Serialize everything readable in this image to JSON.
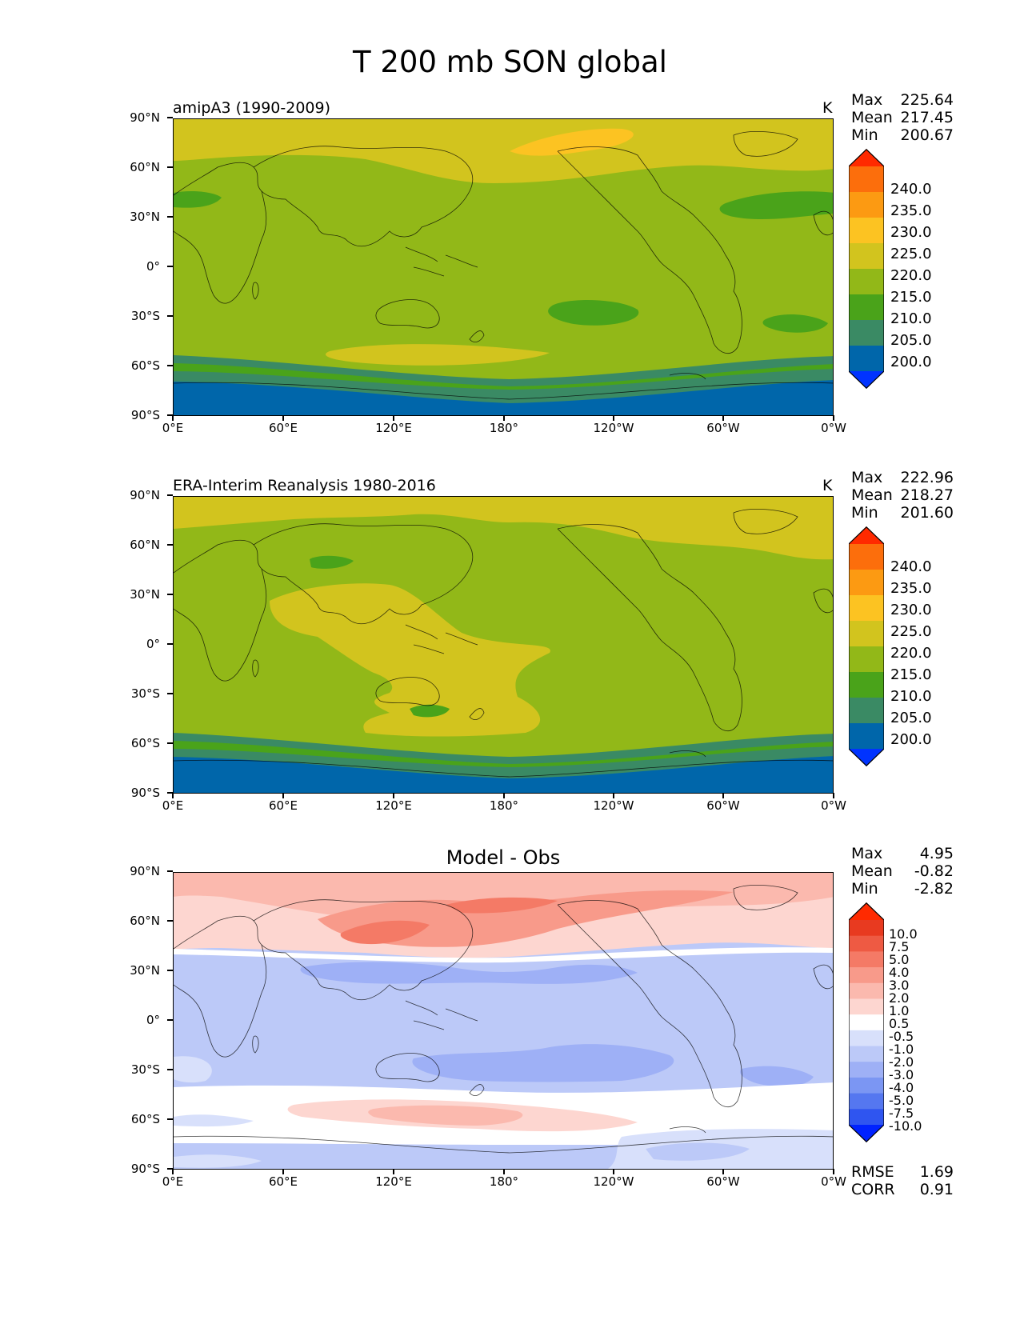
{
  "figure_title": "T 200 mb SON global",
  "axes": {
    "lat_ticks": [
      "90°N",
      "60°N",
      "30°N",
      "0°",
      "30°S",
      "60°S",
      "90°S"
    ],
    "lon_ticks": [
      "0°E",
      "60°E",
      "120°E",
      "180°",
      "120°W",
      "60°W",
      "0°W"
    ]
  },
  "panels": [
    {
      "subtitle": "amipA3 (1990-2009)",
      "units": "K",
      "stats": [
        {
          "label": "Max",
          "value": "225.64"
        },
        {
          "label": "Mean",
          "value": "217.45"
        },
        {
          "label": "Min",
          "value": "200.67"
        }
      ],
      "colorbar_labels": [
        "240.0",
        "235.0",
        "230.0",
        "225.0",
        "220.0",
        "215.0",
        "210.0",
        "205.0",
        "200.0"
      ]
    },
    {
      "subtitle": "ERA-Interim Reanalysis 1980-2016",
      "units": "K",
      "stats": [
        {
          "label": "Max",
          "value": "222.96"
        },
        {
          "label": "Mean",
          "value": "218.27"
        },
        {
          "label": "Min",
          "value": "201.60"
        }
      ],
      "colorbar_labels": [
        "240.0",
        "235.0",
        "230.0",
        "225.0",
        "220.0",
        "215.0",
        "210.0",
        "205.0",
        "200.0"
      ]
    },
    {
      "subtitle": "Model - Obs",
      "stats": [
        {
          "label": "Max",
          "value": "4.95"
        },
        {
          "label": "Mean",
          "value": "-0.82"
        },
        {
          "label": "Min",
          "value": "-2.82"
        }
      ],
      "colorbar_labels": [
        "10.0",
        "7.5",
        "5.0",
        "4.0",
        "3.0",
        "2.0",
        "1.0",
        "0.5",
        "-0.5",
        "-1.0",
        "-2.0",
        "-3.0",
        "-4.0",
        "-5.0",
        "-7.5",
        "-10.0"
      ],
      "bottom_stats": [
        {
          "label": "RMSE",
          "value": "1.69"
        },
        {
          "label": "CORR",
          "value": "0.91"
        }
      ]
    }
  ],
  "colors": {
    "abs_scale": [
      "#0033ff",
      "#0066aa",
      "#3a8a64",
      "#4aa31a",
      "#92b818",
      "#d2c41e",
      "#fcc322",
      "#fc9a12",
      "#fc6e0c",
      "#ff2a00"
    ],
    "diff_scale": [
      "#0022ff",
      "#2f55f0",
      "#5577f0",
      "#7b96f3",
      "#9eb0f6",
      "#bcc9f8",
      "#d8e0fb",
      "#ffffff",
      "#fdd6d0",
      "#fbb9ae",
      "#f89a8a",
      "#f47a66",
      "#ee5a43",
      "#e83a20",
      "#ff2a00"
    ]
  }
}
